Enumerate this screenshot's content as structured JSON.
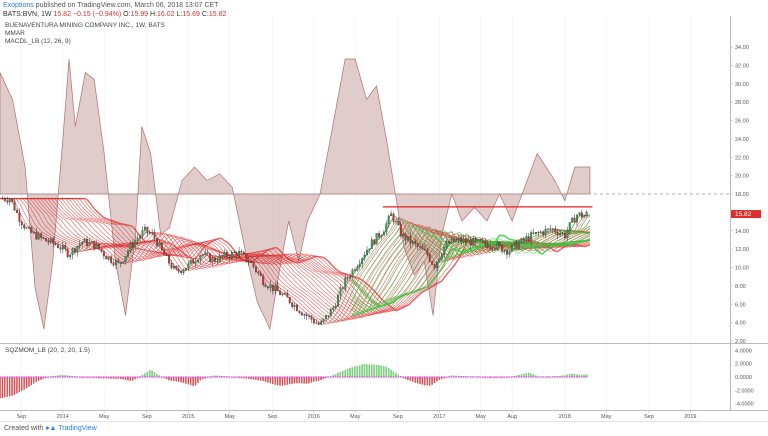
{
  "header": {
    "user": "Exoptions",
    "published_text": "published on TradingView.com, March 06, 2018 13:07 CET",
    "symbol": "BATS:BVN, 1W",
    "last": "15.82",
    "change": "−0.15 (−0.94%)",
    "o_label": "O:",
    "open": "15.99",
    "h_label": "H:",
    "high": "16.02",
    "l_label": "L:",
    "low": "15.69",
    "c_label": "C:",
    "close": "15.82"
  },
  "legend": {
    "title": "BUENAVENTURA MINING COMPANY INC., 1W, BATS",
    "ind1": "MMAR",
    "ind2": "MACDL_LB (12, 26, 9)",
    "ind3": "SQZMOM_LB (20, 2, 20, 1.5)"
  },
  "footer": {
    "created_with": "Created with",
    "brand": "TradingView"
  },
  "colors": {
    "up": "#26a65b",
    "down": "#d9302f",
    "ribbon_red": "#d9302f",
    "ribbon_green": "#2ecc40",
    "macd_fill": "#c9a3a3",
    "resistance": "#e02020",
    "mom_green": "#77dd77",
    "mom_red": "#e05050",
    "mom_magenta": "#e040e0"
  },
  "chart_data": [
    {
      "type": "candlestick",
      "title": "BUENAVENTURA MINING COMPANY INC., 1W, BATS",
      "y_axis_labels": [
        "34.00",
        "32.00",
        "30.00",
        "28.00",
        "26.00",
        "24.00",
        "22.00",
        "20.00",
        "18.00",
        "16.00",
        "14.00",
        "12.00",
        "10.00",
        "8.00",
        "6.00",
        "4.00",
        "2.00"
      ],
      "ylim": [
        2,
        34
      ],
      "x_tick_labels": [
        "Sep",
        "2014",
        "May",
        "Sep",
        "2015",
        "May",
        "Sep",
        "2016",
        "May",
        "Sep",
        "2017",
        "May",
        "Aug",
        "2018",
        "May",
        "Sep",
        "2019"
      ],
      "last_price_label": "15.82",
      "dashed_level": 18,
      "resistance_level": 16.6,
      "price_path": [
        [
          2013.58,
          17.5
        ],
        [
          2013.65,
          15.5
        ],
        [
          2013.72,
          14.0
        ],
        [
          2013.85,
          13.0
        ],
        [
          2013.95,
          12.5
        ],
        [
          2014.05,
          11.5
        ],
        [
          2014.15,
          12.8
        ],
        [
          2014.25,
          12.5
        ],
        [
          2014.35,
          11.2
        ],
        [
          2014.45,
          10.3
        ],
        [
          2014.55,
          12.5
        ],
        [
          2014.65,
          14.0
        ],
        [
          2014.72,
          13.5
        ],
        [
          2014.8,
          11.5
        ],
        [
          2014.9,
          9.5
        ],
        [
          2015.0,
          10.2
        ],
        [
          2015.1,
          11.5
        ],
        [
          2015.2,
          10.8
        ],
        [
          2015.3,
          11.3
        ],
        [
          2015.4,
          11.6
        ],
        [
          2015.5,
          10.5
        ],
        [
          2015.6,
          8.5
        ],
        [
          2015.7,
          7.5
        ],
        [
          2015.8,
          6.5
        ],
        [
          2015.9,
          5.2
        ],
        [
          2016.0,
          4.2
        ],
        [
          2016.05,
          3.7
        ],
        [
          2016.15,
          5.5
        ],
        [
          2016.25,
          8.5
        ],
        [
          2016.35,
          10.5
        ],
        [
          2016.45,
          12.5
        ],
        [
          2016.55,
          14.0
        ],
        [
          2016.62,
          15.8
        ],
        [
          2016.7,
          13.5
        ],
        [
          2016.8,
          12.5
        ],
        [
          2016.9,
          11.5
        ],
        [
          2016.96,
          10.2
        ],
        [
          2017.05,
          12.5
        ],
        [
          2017.15,
          13.0
        ],
        [
          2017.25,
          12.8
        ],
        [
          2017.35,
          12.6
        ],
        [
          2017.45,
          12.4
        ],
        [
          2017.55,
          11.8
        ],
        [
          2017.6,
          12.3
        ],
        [
          2017.7,
          13.2
        ],
        [
          2017.8,
          13.8
        ],
        [
          2017.9,
          14.2
        ],
        [
          2018.0,
          13.5
        ],
        [
          2018.05,
          14.8
        ],
        [
          2018.1,
          15.8
        ],
        [
          2018.15,
          15.6
        ],
        [
          2018.18,
          15.82
        ]
      ]
    },
    {
      "type": "bar",
      "title": "SQZMOM_LB (20, 2, 20, 1.5)",
      "y_axis_labels": [
        "4.0000",
        "2.0000",
        "0.0000",
        "-2.0000",
        "-4.0000"
      ],
      "ylim": [
        -4.5,
        4.5
      ]
    }
  ]
}
